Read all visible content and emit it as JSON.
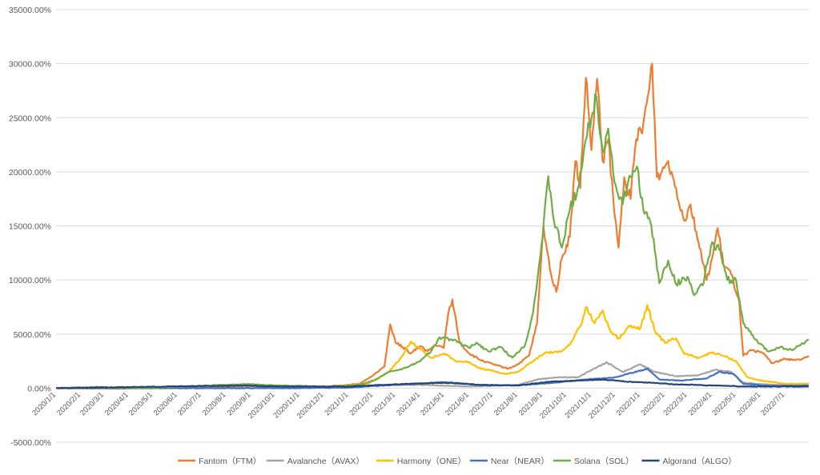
{
  "chart_data": {
    "type": "line",
    "title": "",
    "xlabel": "",
    "ylabel": "",
    "ylim": [
      -5000,
      35000
    ],
    "grid": true,
    "legend_position": "bottom",
    "y_ticks": [
      "35000.00%",
      "30000.00%",
      "25000.00%",
      "20000.00%",
      "15000.00%",
      "10000.00%",
      "5000.00%",
      "0.00%",
      "-5000.00%"
    ],
    "y_tick_values": [
      35000,
      30000,
      25000,
      20000,
      15000,
      10000,
      5000,
      0,
      -5000
    ],
    "x_ticks": [
      "2020/1/1",
      "2020/2/1",
      "2020/3/1",
      "2020/4/1",
      "2020/5/1",
      "2020/6/1",
      "2020/7/1",
      "2020/8/1",
      "2020/9/1",
      "2020/10/1",
      "2020/11/1",
      "2020/12/1",
      "2021/1/1",
      "2021/2/1",
      "2021/3/1",
      "2021/4/1",
      "2021/5/1",
      "2021/6/1",
      "2021/7/1",
      "2021/8/1",
      "2021/9/1",
      "2021/10/1",
      "2021/11/1",
      "2021/12/1",
      "2022/1/1",
      "2022/2/1",
      "2022/3/1",
      "2022/4/1",
      "2022/5/1",
      "2022/6/1",
      "2022/7/1"
    ],
    "x_range": [
      "2020-01-01",
      "2022-07-31"
    ],
    "series": [
      {
        "name": "Fantom（FTM）",
        "color": "#ED7D31",
        "points": [
          [
            "2020-01-01",
            0
          ],
          [
            "2020-02-15",
            20
          ],
          [
            "2020-03-15",
            -40
          ],
          [
            "2020-05-01",
            0
          ],
          [
            "2020-07-01",
            40
          ],
          [
            "2020-08-25",
            200
          ],
          [
            "2020-10-01",
            150
          ],
          [
            "2020-12-01",
            120
          ],
          [
            "2021-01-15",
            400
          ],
          [
            "2021-02-01",
            1200
          ],
          [
            "2021-02-15",
            2000
          ],
          [
            "2021-02-22",
            5900
          ],
          [
            "2021-03-01",
            4200
          ],
          [
            "2021-03-10",
            3800
          ],
          [
            "2021-03-20",
            3200
          ],
          [
            "2021-04-01",
            3900
          ],
          [
            "2021-04-10",
            3400
          ],
          [
            "2021-04-20",
            4000
          ],
          [
            "2021-04-30",
            3700
          ],
          [
            "2021-05-06",
            7000
          ],
          [
            "2021-05-11",
            8200
          ],
          [
            "2021-05-20",
            4200
          ],
          [
            "2021-06-01",
            3200
          ],
          [
            "2021-06-15",
            2600
          ],
          [
            "2021-07-01",
            2200
          ],
          [
            "2021-07-20",
            1800
          ],
          [
            "2021-08-01",
            2200
          ],
          [
            "2021-08-15",
            3000
          ],
          [
            "2021-08-25",
            6000
          ],
          [
            "2021-09-02",
            15000
          ],
          [
            "2021-09-10",
            11000
          ],
          [
            "2021-09-18",
            8900
          ],
          [
            "2021-09-25",
            12000
          ],
          [
            "2021-10-05",
            14000
          ],
          [
            "2021-10-12",
            21000
          ],
          [
            "2021-10-18",
            18500
          ],
          [
            "2021-10-25",
            28700
          ],
          [
            "2021-11-01",
            22000
          ],
          [
            "2021-11-08",
            28600
          ],
          [
            "2021-11-15",
            21000
          ],
          [
            "2021-11-22",
            23000
          ],
          [
            "2021-11-30",
            16000
          ],
          [
            "2021-12-05",
            13000
          ],
          [
            "2021-12-12",
            19500
          ],
          [
            "2021-12-20",
            17500
          ],
          [
            "2021-12-27",
            23000
          ],
          [
            "2022-01-05",
            24500
          ],
          [
            "2022-01-12",
            27500
          ],
          [
            "2022-01-16",
            30000
          ],
          [
            "2022-01-22",
            19500
          ],
          [
            "2022-01-28",
            20000
          ],
          [
            "2022-02-05",
            21000
          ],
          [
            "2022-02-15",
            18500
          ],
          [
            "2022-02-25",
            15500
          ],
          [
            "2022-03-05",
            17000
          ],
          [
            "2022-03-15",
            13500
          ],
          [
            "2022-03-25",
            10000
          ],
          [
            "2022-04-01",
            12000
          ],
          [
            "2022-04-08",
            14800
          ],
          [
            "2022-04-15",
            11500
          ],
          [
            "2022-04-25",
            10500
          ],
          [
            "2022-05-05",
            8000
          ],
          [
            "2022-05-10",
            3000
          ],
          [
            "2022-05-20",
            3500
          ],
          [
            "2022-06-05",
            3200
          ],
          [
            "2022-06-15",
            2300
          ],
          [
            "2022-07-01",
            2700
          ],
          [
            "2022-07-20",
            2600
          ],
          [
            "2022-07-31",
            3000
          ]
        ]
      },
      {
        "name": "Avalanche（AVAX）",
        "color": "#A5A5A5",
        "points": [
          [
            "2020-01-01",
            0
          ],
          [
            "2020-09-01",
            0
          ],
          [
            "2021-01-01",
            100
          ],
          [
            "2021-02-15",
            300
          ],
          [
            "2021-04-01",
            300
          ],
          [
            "2021-06-01",
            150
          ],
          [
            "2021-08-01",
            300
          ],
          [
            "2021-08-25",
            800
          ],
          [
            "2021-09-20",
            1000
          ],
          [
            "2021-10-15",
            1000
          ],
          [
            "2021-11-20",
            2400
          ],
          [
            "2021-12-10",
            1500
          ],
          [
            "2022-01-01",
            2200
          ],
          [
            "2022-01-20",
            1500
          ],
          [
            "2022-02-15",
            1100
          ],
          [
            "2022-03-15",
            1200
          ],
          [
            "2022-04-05",
            1700
          ],
          [
            "2022-04-25",
            1500
          ],
          [
            "2022-05-10",
            500
          ],
          [
            "2022-06-15",
            300
          ],
          [
            "2022-07-31",
            400
          ]
        ]
      },
      {
        "name": "Harmony（ONE）",
        "color": "#FFC000",
        "points": [
          [
            "2020-01-01",
            0
          ],
          [
            "2020-03-15",
            -50
          ],
          [
            "2020-08-25",
            300
          ],
          [
            "2020-10-01",
            200
          ],
          [
            "2020-12-01",
            100
          ],
          [
            "2021-01-25",
            400
          ],
          [
            "2021-02-20",
            1500
          ],
          [
            "2021-03-10",
            3000
          ],
          [
            "2021-03-20",
            4300
          ],
          [
            "2021-04-01",
            3600
          ],
          [
            "2021-04-15",
            2800
          ],
          [
            "2021-05-01",
            3200
          ],
          [
            "2021-05-15",
            2500
          ],
          [
            "2021-06-01",
            2400
          ],
          [
            "2021-06-15",
            1800
          ],
          [
            "2021-07-01",
            1600
          ],
          [
            "2021-07-15",
            1300
          ],
          [
            "2021-08-01",
            1500
          ],
          [
            "2021-08-20",
            2500
          ],
          [
            "2021-09-05",
            3300
          ],
          [
            "2021-09-20",
            3300
          ],
          [
            "2021-10-05",
            4000
          ],
          [
            "2021-10-20",
            6000
          ],
          [
            "2021-10-25",
            7500
          ],
          [
            "2021-11-05",
            6000
          ],
          [
            "2021-11-15",
            7200
          ],
          [
            "2021-11-25",
            5200
          ],
          [
            "2021-12-05",
            4600
          ],
          [
            "2021-12-20",
            5800
          ],
          [
            "2022-01-01",
            5500
          ],
          [
            "2022-01-10",
            7700
          ],
          [
            "2022-01-20",
            5200
          ],
          [
            "2022-02-01",
            4200
          ],
          [
            "2022-02-15",
            4600
          ],
          [
            "2022-02-25",
            3200
          ],
          [
            "2022-03-15",
            2800
          ],
          [
            "2022-04-01",
            3300
          ],
          [
            "2022-04-15",
            3000
          ],
          [
            "2022-05-01",
            2500
          ],
          [
            "2022-05-15",
            1000
          ],
          [
            "2022-06-01",
            700
          ],
          [
            "2022-07-01",
            400
          ],
          [
            "2022-07-31",
            400
          ]
        ]
      },
      {
        "name": "Near（NEAR）",
        "color": "#4472C4",
        "points": [
          [
            "2020-01-01",
            0
          ],
          [
            "2020-10-15",
            0
          ],
          [
            "2021-01-01",
            50
          ],
          [
            "2021-02-15",
            250
          ],
          [
            "2021-05-01",
            550
          ],
          [
            "2021-06-15",
            300
          ],
          [
            "2021-08-01",
            250
          ],
          [
            "2021-09-15",
            500
          ],
          [
            "2021-10-25",
            800
          ],
          [
            "2021-12-01",
            1000
          ],
          [
            "2022-01-10",
            1800
          ],
          [
            "2022-01-25",
            800
          ],
          [
            "2022-02-20",
            700
          ],
          [
            "2022-03-25",
            900
          ],
          [
            "2022-04-10",
            1500
          ],
          [
            "2022-04-28",
            1300
          ],
          [
            "2022-05-10",
            400
          ],
          [
            "2022-06-15",
            200
          ],
          [
            "2022-07-31",
            250
          ]
        ]
      },
      {
        "name": "Solana（SOL）",
        "color": "#70AD47",
        "points": [
          [
            "2020-01-01",
            0
          ],
          [
            "2020-02-20",
            100
          ],
          [
            "2020-04-15",
            0
          ],
          [
            "2020-08-28",
            380
          ],
          [
            "2020-10-01",
            250
          ],
          [
            "2020-12-15",
            150
          ],
          [
            "2021-01-15",
            300
          ],
          [
            "2021-02-05",
            800
          ],
          [
            "2021-02-20",
            1500
          ],
          [
            "2021-03-10",
            1800
          ],
          [
            "2021-04-01",
            2500
          ],
          [
            "2021-04-15",
            3500
          ],
          [
            "2021-04-25",
            4700
          ],
          [
            "2021-05-10",
            4500
          ],
          [
            "2021-05-20",
            4200
          ],
          [
            "2021-06-01",
            3700
          ],
          [
            "2021-06-10",
            4200
          ],
          [
            "2021-06-25",
            3400
          ],
          [
            "2021-07-10",
            3800
          ],
          [
            "2021-07-25",
            2800
          ],
          [
            "2021-08-10",
            4000
          ],
          [
            "2021-08-20",
            7000
          ],
          [
            "2021-09-01",
            14000
          ],
          [
            "2021-09-08",
            19600
          ],
          [
            "2021-09-15",
            15500
          ],
          [
            "2021-09-25",
            13000
          ],
          [
            "2021-10-05",
            16500
          ],
          [
            "2021-10-15",
            18500
          ],
          [
            "2021-10-25",
            23000
          ],
          [
            "2021-11-01",
            25000
          ],
          [
            "2021-11-07",
            27000
          ],
          [
            "2021-11-15",
            22000
          ],
          [
            "2021-11-22",
            24000
          ],
          [
            "2021-11-30",
            19000
          ],
          [
            "2021-12-10",
            17000
          ],
          [
            "2021-12-20",
            19500
          ],
          [
            "2021-12-28",
            20500
          ],
          [
            "2022-01-05",
            16500
          ],
          [
            "2022-01-15",
            15000
          ],
          [
            "2022-01-25",
            9700
          ],
          [
            "2022-02-05",
            11800
          ],
          [
            "2022-02-15",
            9600
          ],
          [
            "2022-03-01",
            10300
          ],
          [
            "2022-03-10",
            8600
          ],
          [
            "2022-03-20",
            9500
          ],
          [
            "2022-04-01",
            13500
          ],
          [
            "2022-04-10",
            12800
          ],
          [
            "2022-04-20",
            10000
          ],
          [
            "2022-05-01",
            10000
          ],
          [
            "2022-05-10",
            6000
          ],
          [
            "2022-05-25",
            4500
          ],
          [
            "2022-06-10",
            3400
          ],
          [
            "2022-06-25",
            3800
          ],
          [
            "2022-07-10",
            3500
          ],
          [
            "2022-07-31",
            4500
          ]
        ]
      },
      {
        "name": "Algorand（ALGO）",
        "color": "#264478",
        "points": [
          [
            "2020-01-01",
            0
          ],
          [
            "2020-08-25",
            250
          ],
          [
            "2020-10-01",
            150
          ],
          [
            "2021-01-01",
            150
          ],
          [
            "2021-03-01",
            350
          ],
          [
            "2021-05-01",
            500
          ],
          [
            "2021-06-15",
            300
          ],
          [
            "2021-08-01",
            250
          ],
          [
            "2021-09-10",
            600
          ],
          [
            "2021-10-15",
            700
          ],
          [
            "2021-11-15",
            800
          ],
          [
            "2021-12-15",
            600
          ],
          [
            "2022-01-15",
            500
          ],
          [
            "2022-02-15",
            350
          ],
          [
            "2022-04-01",
            250
          ],
          [
            "2022-05-15",
            150
          ],
          [
            "2022-07-31",
            150
          ]
        ]
      }
    ]
  }
}
